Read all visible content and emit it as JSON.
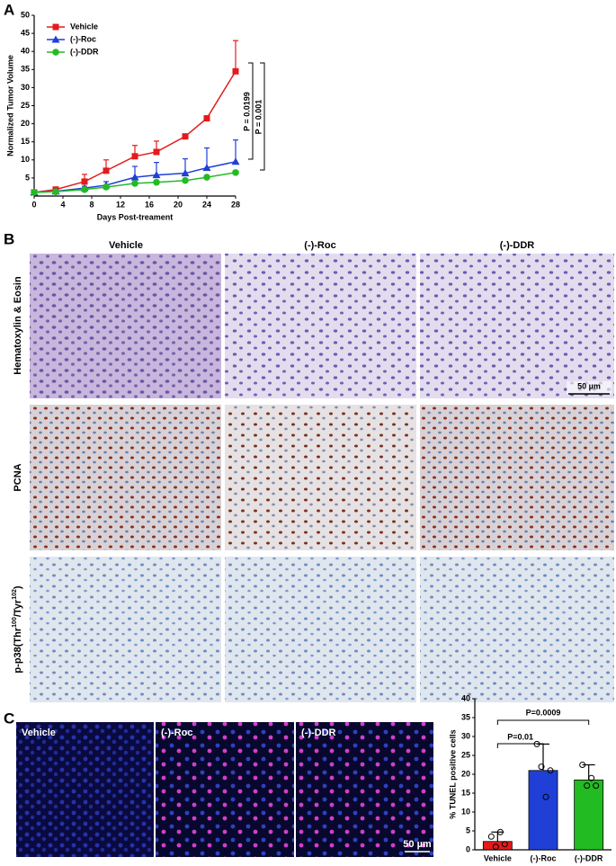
{
  "panels": [
    "A",
    "B",
    "C"
  ],
  "chart_data": [
    {
      "type": "line",
      "ylabel": "Normalized Tumor Volume",
      "xlabel": "Days Post-treament",
      "x": [
        0,
        3,
        7,
        10,
        14,
        17,
        21,
        24,
        28
      ],
      "xlim": [
        0,
        28
      ],
      "xticks": [
        0,
        4,
        8,
        12,
        16,
        20,
        24,
        28
      ],
      "ylim": [
        0,
        50
      ],
      "yticks": [
        5,
        10,
        15,
        20,
        25,
        30,
        35,
        40,
        45,
        50
      ],
      "legend": "upper left",
      "series": [
        {
          "name": "Vehicle",
          "color": "#e41a1c",
          "marker": "square",
          "values": [
            1,
            1.8,
            4,
            7,
            11,
            12.2,
            16.5,
            21.5,
            34.5
          ],
          "errors": [
            0,
            0,
            2,
            3,
            3,
            3,
            0,
            0,
            8.5
          ]
        },
        {
          "name": "(-)-Roc",
          "color": "#1f3fd6",
          "marker": "triangle",
          "values": [
            1,
            1.3,
            2.2,
            3,
            5.2,
            5.8,
            6.3,
            7.8,
            9.5
          ],
          "errors": [
            0,
            0,
            0.5,
            1,
            3,
            3.5,
            4,
            5.5,
            6
          ]
        },
        {
          "name": "(-)-DDR",
          "color": "#22bb22",
          "marker": "circle",
          "values": [
            1,
            1.2,
            1.8,
            2.5,
            3.5,
            3.8,
            4.3,
            5.2,
            6.5
          ],
          "errors": [
            0,
            0,
            0,
            0,
            0,
            0,
            0,
            0,
            0.5
          ]
        }
      ],
      "annotations": [
        "P = 0.0199",
        "P = 0.001"
      ]
    },
    {
      "type": "bar",
      "ylabel": "% TUNEL positive cells",
      "categories": [
        "Vehicle",
        "(-)-Roc",
        "(-)-DDR"
      ],
      "values": [
        2.2,
        21,
        18.5
      ],
      "errors": [
        2.5,
        7,
        4
      ],
      "colors": [
        "#e41a1c",
        "#1f3fd6",
        "#22bb22"
      ],
      "points": [
        [
          3.5,
          0.8,
          4.7,
          1.5
        ],
        [
          28,
          22,
          14,
          21
        ],
        [
          22.5,
          17,
          19,
          17
        ]
      ],
      "ylim": [
        0,
        40
      ],
      "yticks": [
        0,
        5,
        10,
        15,
        20,
        25,
        30,
        35,
        40
      ],
      "annotations": [
        "P=0.01",
        "P=0.0009"
      ]
    }
  ],
  "histology": {
    "columns": [
      "Vehicle",
      "(-)-Roc",
      "(-)-DDR"
    ],
    "rows": [
      "Hematoxylin & Eosin",
      "PCNA"
    ],
    "row3_parts": [
      "p-p38(Thr",
      "100",
      "/Tyr",
      "102",
      ")"
    ],
    "scale_bar": "50 µm"
  },
  "fluorescence": {
    "labels": [
      "Vehicle",
      "(-)-Roc",
      "(-)-DDR"
    ],
    "scale_bar": "50 µm"
  }
}
